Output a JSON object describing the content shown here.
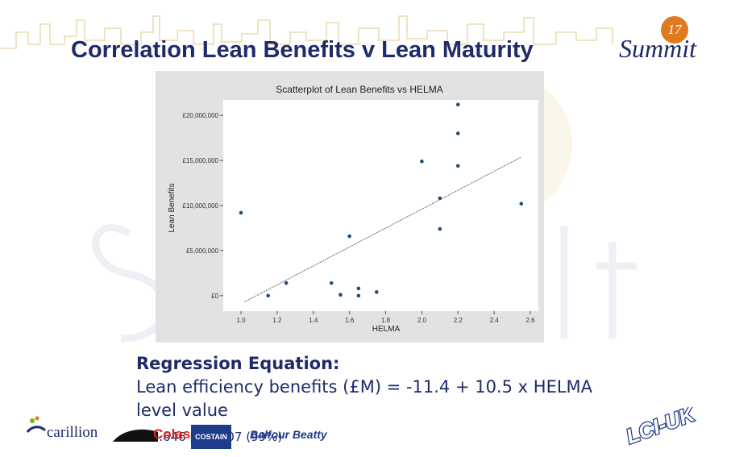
{
  "slide": {
    "title": "Correlation Lean Benefits v Lean Maturity",
    "logo_text": "Summit",
    "logo_number": "17"
  },
  "chart_data": {
    "type": "scatter",
    "title": "Scatterplot of Lean Benefits vs HELMA",
    "xlabel": "HELMA",
    "ylabel": "Lean Benefits",
    "xlim": [
      1.0,
      2.6
    ],
    "ylim": [
      -1000000,
      21000000
    ],
    "x_ticks": [
      1.0,
      1.2,
      1.4,
      1.6,
      1.8,
      2.0,
      2.2,
      2.4,
      2.6
    ],
    "x_tick_labels": [
      "1.0",
      "1.2",
      "1.4",
      "1.6",
      "1.8",
      "2.0",
      "2.2",
      "2.4",
      "2.6"
    ],
    "y_ticks": [
      0,
      5000000,
      10000000,
      15000000,
      20000000
    ],
    "y_tick_labels": [
      "£0",
      "£5,000,000",
      "£10,000,000",
      "£15,000,000",
      "£20,000,000"
    ],
    "grid": false,
    "points": [
      {
        "x": 1.0,
        "y": 9200000
      },
      {
        "x": 1.15,
        "y": 0
      },
      {
        "x": 1.25,
        "y": 1400000
      },
      {
        "x": 1.5,
        "y": 1400000
      },
      {
        "x": 1.55,
        "y": 100000
      },
      {
        "x": 1.6,
        "y": 6600000
      },
      {
        "x": 1.65,
        "y": 800000
      },
      {
        "x": 1.65,
        "y": 0
      },
      {
        "x": 1.75,
        "y": 400000
      },
      {
        "x": 2.0,
        "y": 14900000
      },
      {
        "x": 2.1,
        "y": 10800000
      },
      {
        "x": 2.1,
        "y": 7400000
      },
      {
        "x": 2.2,
        "y": 21200000
      },
      {
        "x": 2.2,
        "y": 18000000
      },
      {
        "x": 2.2,
        "y": 14400000
      },
      {
        "x": 2.55,
        "y": 10200000
      }
    ],
    "trendline": {
      "intercept": -11400000,
      "slope": 10500000,
      "x_range": [
        1.02,
        2.55
      ]
    },
    "colors": {
      "points": "#1f4e79",
      "background": "#e2e2e2",
      "plot_area": "#ffffff",
      "trend": "#333333"
    }
  },
  "regression": {
    "heading": "Regression Equation:",
    "equation": "Lean efficiency benefits (£M) = -11.4 + 10.5 x HELMA level value",
    "stats": "r=0.646  p=0.007 (99%)"
  },
  "sponsors": {
    "carillion": "carillion",
    "colas": "Colas",
    "costain": "COSTAIN",
    "balfour": "Balfour Beatty",
    "leiuk": "LCI-UK"
  }
}
